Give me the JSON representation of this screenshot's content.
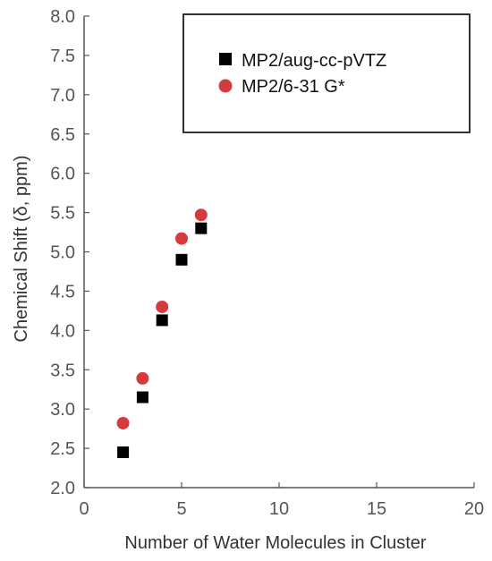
{
  "chart_data": {
    "type": "scatter",
    "title": "",
    "xlabel": "Number of Water Molecules in Cluster",
    "ylabel": "Chemical Shift (δ, ppm)",
    "xlim": [
      0,
      20
    ],
    "ylim": [
      2.0,
      8.0
    ],
    "x_ticks": [
      "0",
      "5",
      "10",
      "15",
      "20"
    ],
    "y_ticks": [
      "2.0",
      "2.5",
      "3.0",
      "3.5",
      "4.0",
      "4.5",
      "5.0",
      "5.5",
      "6.0",
      "6.5",
      "7.0",
      "7.5",
      "8.0"
    ],
    "grid": false,
    "legend_position": "top-right",
    "series": [
      {
        "name": "MP2/aug-cc-pVTZ",
        "marker": "square",
        "color": "#000000",
        "x": [
          2,
          3,
          4,
          5,
          6
        ],
        "y": [
          2.45,
          3.15,
          4.13,
          4.9,
          5.3
        ]
      },
      {
        "name": "MP2/6-31 G*",
        "marker": "circle",
        "color": "#d43a3f",
        "x": [
          2,
          3,
          4,
          5,
          6
        ],
        "y": [
          2.82,
          3.39,
          4.3,
          5.17,
          5.47
        ]
      }
    ]
  }
}
